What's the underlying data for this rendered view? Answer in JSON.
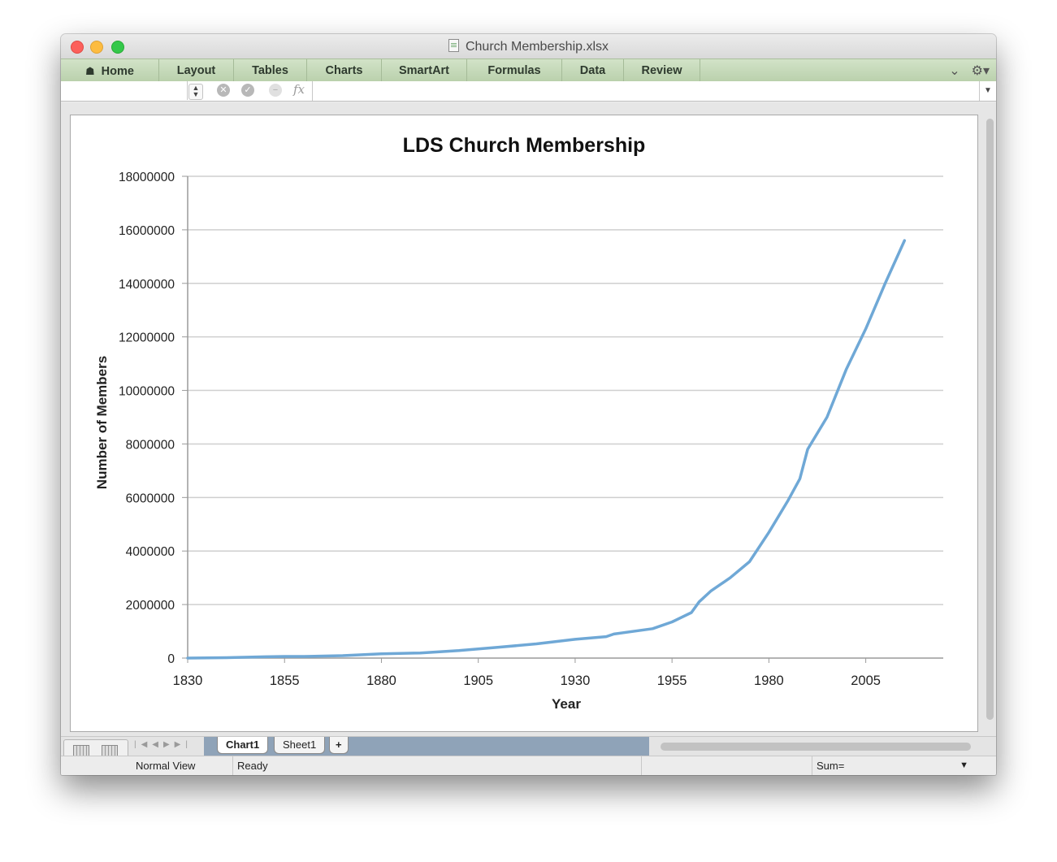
{
  "window": {
    "title": "Church Membership.xlsx"
  },
  "ribbon": {
    "tabs": [
      {
        "label": "Home",
        "icon": "home-icon"
      },
      {
        "label": "Layout"
      },
      {
        "label": "Tables"
      },
      {
        "label": "Charts"
      },
      {
        "label": "SmartArt"
      },
      {
        "label": "Formulas"
      },
      {
        "label": "Data"
      },
      {
        "label": "Review"
      }
    ],
    "right_icons": [
      "chevron-down-icon",
      "gear-icon"
    ]
  },
  "formula_bar": {
    "name_box": "",
    "value": "",
    "fx_label": "fx"
  },
  "sheet_tabs": {
    "tabs": [
      {
        "label": "Chart1",
        "active": true
      },
      {
        "label": "Sheet1",
        "active": false
      }
    ],
    "add_label": "+"
  },
  "status_bar": {
    "view": "Normal View",
    "state": "Ready",
    "sum": "Sum="
  },
  "chart_data": {
    "type": "line",
    "title": "LDS Church Membership",
    "xlabel": "Year",
    "ylabel": "Number of Members",
    "xlim": [
      1830,
      2025
    ],
    "ylim": [
      0,
      18000000
    ],
    "x_ticks": [
      1830,
      1855,
      1880,
      1905,
      1930,
      1955,
      1980,
      2005
    ],
    "y_ticks": [
      0,
      2000000,
      4000000,
      6000000,
      8000000,
      10000000,
      12000000,
      14000000,
      16000000,
      18000000
    ],
    "grid": true,
    "legend": "none",
    "series_color": "#6fa8d6",
    "series": [
      {
        "x": [
          1830,
          1840,
          1850,
          1855,
          1860,
          1870,
          1880,
          1890,
          1900,
          1910,
          1920,
          1930,
          1938,
          1940,
          1950,
          1955,
          1960,
          1962,
          1965,
          1970,
          1975,
          1980,
          1985,
          1988,
          1990,
          1995,
          2000,
          2005,
          2010,
          2015
        ],
        "y": [
          0,
          15000,
          50000,
          60000,
          60000,
          90000,
          160000,
          190000,
          280000,
          400000,
          530000,
          700000,
          800000,
          900000,
          1100000,
          1350000,
          1700000,
          2100000,
          2500000,
          3000000,
          3600000,
          4700000,
          5900000,
          6700000,
          7800000,
          9000000,
          10800000,
          12300000,
          14000000,
          15600000
        ]
      }
    ]
  }
}
